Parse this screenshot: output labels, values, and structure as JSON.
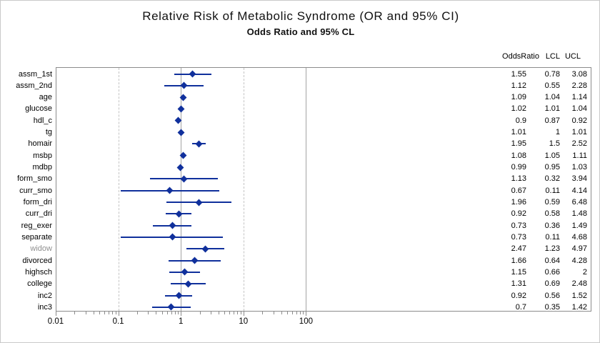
{
  "title": "Relative Risk of Metabolic Syndrome (OR and 95% CI)",
  "subtitle": "Odds Ratio and 95% CL",
  "table": {
    "columns": [
      "OddsRatio",
      "LCL",
      "UCL"
    ]
  },
  "axis": {
    "tick_labels": [
      "0.01",
      "0.1",
      "1",
      "10",
      "100"
    ],
    "reflines": [
      {
        "value": "0.1",
        "style": "dashed"
      },
      {
        "value": "1",
        "style": "solid"
      },
      {
        "value": "10",
        "style": "dashed"
      },
      {
        "value": "100",
        "style": "solid"
      }
    ]
  },
  "colors": {
    "marker": "#10309c",
    "frame": "#8c8c8c",
    "grid_dashed": "#c4c4c4",
    "grid_solid": "#a3a3a3",
    "muted_label": "#8f8f8f"
  },
  "chart_data": {
    "type": "scatter",
    "subtype": "forest-plot",
    "title": "Relative Risk of Metabolic Syndrome (OR and 95% CI)",
    "subtitle": "Odds Ratio and 95% CL",
    "x_axis": {
      "scale": "log10",
      "range": [
        0.01,
        100
      ],
      "ticks": [
        0.01,
        0.1,
        1,
        10,
        100
      ],
      "grid": true
    },
    "legend": "none",
    "rows": [
      {
        "label": "assm_1st",
        "or": "1.55",
        "lcl": "0.78",
        "ucl": "3.08"
      },
      {
        "label": "assm_2nd",
        "or": "1.12",
        "lcl": "0.55",
        "ucl": "2.28"
      },
      {
        "label": "age",
        "or": "1.09",
        "lcl": "1.04",
        "ucl": "1.14"
      },
      {
        "label": "glucose",
        "or": "1.02",
        "lcl": "1.01",
        "ucl": "1.04"
      },
      {
        "label": "hdl_c",
        "or": "0.9",
        "lcl": "0.87",
        "ucl": "0.92"
      },
      {
        "label": "tg",
        "or": "1.01",
        "lcl": "1",
        "ucl": "1.01"
      },
      {
        "label": "homair",
        "or": "1.95",
        "lcl": "1.5",
        "ucl": "2.52"
      },
      {
        "label": "msbp",
        "or": "1.08",
        "lcl": "1.05",
        "ucl": "1.11"
      },
      {
        "label": "mdbp",
        "or": "0.99",
        "lcl": "0.95",
        "ucl": "1.03"
      },
      {
        "label": "form_smo",
        "or": "1.13",
        "lcl": "0.32",
        "ucl": "3.94"
      },
      {
        "label": "curr_smo",
        "or": "0.67",
        "lcl": "0.11",
        "ucl": "4.14"
      },
      {
        "label": "form_dri",
        "or": "1.96",
        "lcl": "0.59",
        "ucl": "6.48"
      },
      {
        "label": "curr_dri",
        "or": "0.92",
        "lcl": "0.58",
        "ucl": "1.48"
      },
      {
        "label": "reg_exer",
        "or": "0.73",
        "lcl": "0.36",
        "ucl": "1.49"
      },
      {
        "label": "separate",
        "or": "0.73",
        "lcl": "0.11",
        "ucl": "4.68"
      },
      {
        "label": "widow",
        "or": "2.47",
        "lcl": "1.23",
        "ucl": "4.97",
        "muted": true
      },
      {
        "label": "divorced",
        "or": "1.66",
        "lcl": "0.64",
        "ucl": "4.28"
      },
      {
        "label": "highsch",
        "or": "1.15",
        "lcl": "0.66",
        "ucl": "2"
      },
      {
        "label": "college",
        "or": "1.31",
        "lcl": "0.69",
        "ucl": "2.48"
      },
      {
        "label": "inc2",
        "or": "0.92",
        "lcl": "0.56",
        "ucl": "1.52"
      },
      {
        "label": "inc3",
        "or": "0.7",
        "lcl": "0.35",
        "ucl": "1.42"
      }
    ]
  }
}
